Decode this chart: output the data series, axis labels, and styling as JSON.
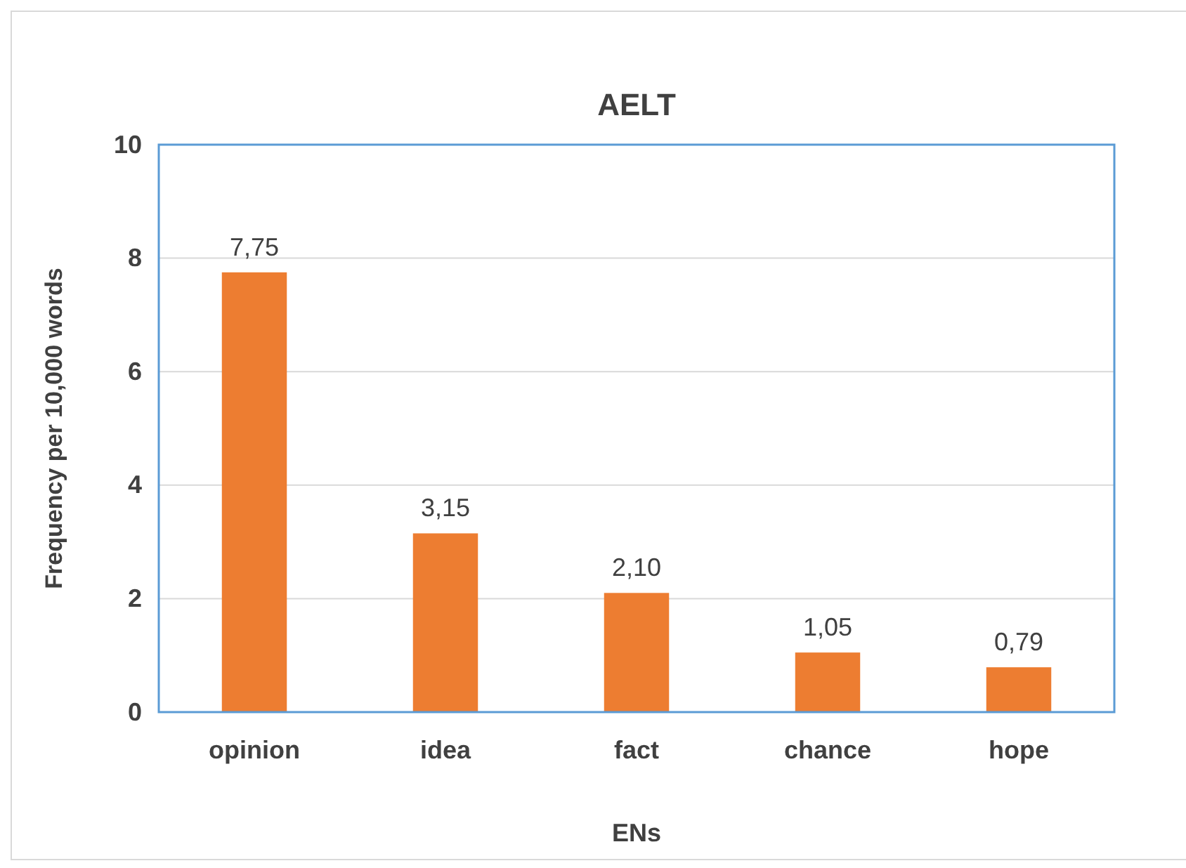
{
  "chart_data": {
    "type": "bar",
    "title": "AELT",
    "xlabel": "ENs",
    "ylabel": "Frequency per 10,000 words",
    "categories": [
      "opinion",
      "idea",
      "fact",
      "chance",
      "hope"
    ],
    "values": [
      7.75,
      3.15,
      2.1,
      1.05,
      0.79
    ],
    "value_labels": [
      "7,75",
      "3,15",
      "2,10",
      "1,05",
      "0,79"
    ],
    "color": "#ed7d31",
    "ylim": [
      0,
      10
    ],
    "yticks": [
      0,
      2,
      4,
      6,
      8,
      10
    ],
    "grid": "y"
  }
}
